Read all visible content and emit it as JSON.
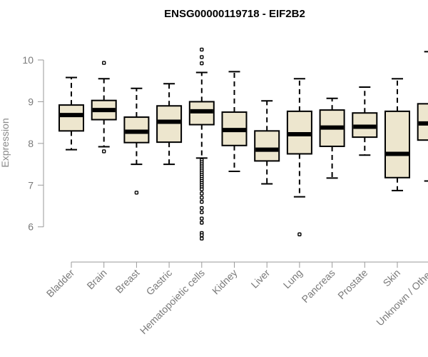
{
  "chart_data": {
    "type": "box",
    "title": "ENSG00000119718 - EIF2B2",
    "xlabel": "",
    "ylabel": "Expression",
    "ylim": [
      5.35,
      10.95
    ],
    "yticks": [
      6,
      7,
      8,
      9,
      10
    ],
    "grid": false,
    "colors": {
      "box_fill": "#ede6ce",
      "stroke": "#000000",
      "axis": "#9a9a9a",
      "text": "#7a7a7a"
    },
    "categories": [
      "Bladder",
      "Brain",
      "Breast",
      "Gastric",
      "Hematopoietic cells",
      "Kidney",
      "Liver",
      "Lung",
      "Pancreas",
      "Prostate",
      "Skin",
      "Unknown / Other"
    ],
    "boxes": [
      {
        "category": "Bladder",
        "min": 7.85,
        "q1": 8.3,
        "median": 8.68,
        "q3": 8.92,
        "max": 9.58,
        "outliers": []
      },
      {
        "category": "Brain",
        "min": 7.92,
        "q1": 8.57,
        "median": 8.8,
        "q3": 9.03,
        "max": 9.55,
        "outliers": [
          9.93,
          7.81
        ]
      },
      {
        "category": "Breast",
        "min": 7.5,
        "q1": 8.02,
        "median": 8.28,
        "q3": 8.63,
        "max": 9.32,
        "outliers": [
          6.82
        ]
      },
      {
        "category": "Gastric",
        "min": 7.5,
        "q1": 8.03,
        "median": 8.52,
        "q3": 8.9,
        "max": 9.43,
        "outliers": []
      },
      {
        "category": "Hematopoietic cells",
        "min": 7.65,
        "q1": 8.45,
        "median": 8.77,
        "q3": 9.0,
        "max": 9.7,
        "outliers": [
          10.25,
          10.07,
          9.92,
          7.6,
          7.55,
          7.5,
          7.45,
          7.4,
          7.35,
          7.3,
          7.25,
          7.2,
          7.15,
          7.1,
          7.05,
          7.0,
          6.95,
          6.9,
          6.8,
          6.7,
          6.6,
          6.45,
          6.35,
          6.2,
          6.1,
          5.85,
          5.8,
          5.72
        ]
      },
      {
        "category": "Kidney",
        "min": 7.33,
        "q1": 7.95,
        "median": 8.32,
        "q3": 8.75,
        "max": 9.72,
        "outliers": []
      },
      {
        "category": "Liver",
        "min": 7.03,
        "q1": 7.58,
        "median": 7.85,
        "q3": 8.3,
        "max": 9.02,
        "outliers": []
      },
      {
        "category": "Lung",
        "min": 6.72,
        "q1": 7.75,
        "median": 8.22,
        "q3": 8.77,
        "max": 9.55,
        "outliers": [
          5.82
        ]
      },
      {
        "category": "Pancreas",
        "min": 7.17,
        "q1": 7.93,
        "median": 8.38,
        "q3": 8.8,
        "max": 9.08,
        "outliers": []
      },
      {
        "category": "Prostate",
        "min": 7.72,
        "q1": 8.15,
        "median": 8.4,
        "q3": 8.73,
        "max": 9.35,
        "outliers": []
      },
      {
        "category": "Skin",
        "min": 6.87,
        "q1": 7.18,
        "median": 7.75,
        "q3": 8.77,
        "max": 9.55,
        "outliers": []
      },
      {
        "category": "Unknown / Other",
        "min": 7.1,
        "q1": 8.08,
        "median": 8.48,
        "q3": 8.95,
        "max": 10.2,
        "outliers": [
          10.75,
          10.42,
          6.67,
          5.47
        ]
      }
    ]
  }
}
